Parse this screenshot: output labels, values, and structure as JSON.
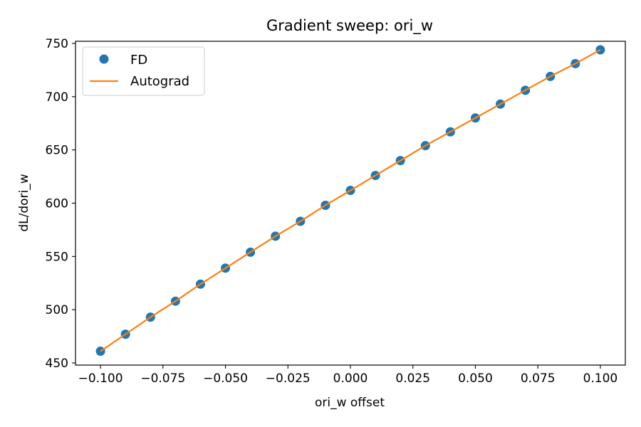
{
  "chart_data": {
    "type": "scatter",
    "title": "Gradient sweep: ori_w",
    "xlabel": "ori_w offset",
    "ylabel": "dL/dori_w",
    "xlim": [
      -0.11,
      0.11
    ],
    "ylim": [
      448,
      752
    ],
    "x_ticks": [
      -0.1,
      -0.075,
      -0.05,
      -0.025,
      0.0,
      0.025,
      0.05,
      0.075,
      0.1
    ],
    "x_tick_labels": [
      "−0.100",
      "−0.075",
      "−0.050",
      "−0.025",
      "0.000",
      "0.025",
      "0.050",
      "0.075",
      "0.100"
    ],
    "y_ticks": [
      450,
      500,
      550,
      600,
      650,
      700,
      750
    ],
    "y_tick_labels": [
      "450",
      "500",
      "550",
      "600",
      "650",
      "700",
      "750"
    ],
    "grid": false,
    "legend_position": "upper-left",
    "x": [
      -0.1,
      -0.09,
      -0.08,
      -0.07,
      -0.06,
      -0.05,
      -0.04,
      -0.03,
      -0.02,
      -0.01,
      0.0,
      0.01,
      0.02,
      0.03,
      0.04,
      0.05,
      0.06,
      0.07,
      0.08,
      0.09,
      0.1
    ],
    "series": [
      {
        "name": "FD",
        "kind": "markers",
        "color": "#1f77b4",
        "values": [
          461,
          477,
          493,
          508,
          524,
          539,
          554,
          569,
          583,
          598,
          612,
          626,
          640,
          654,
          667,
          680,
          693,
          706,
          719,
          731,
          744
        ]
      },
      {
        "name": "Autograd",
        "kind": "line",
        "color": "#ff7f0e",
        "values": [
          461,
          477,
          493,
          508,
          524,
          539,
          554,
          569,
          583,
          598,
          612,
          626,
          640,
          654,
          667,
          680,
          693,
          706,
          719,
          731,
          744
        ]
      }
    ]
  }
}
